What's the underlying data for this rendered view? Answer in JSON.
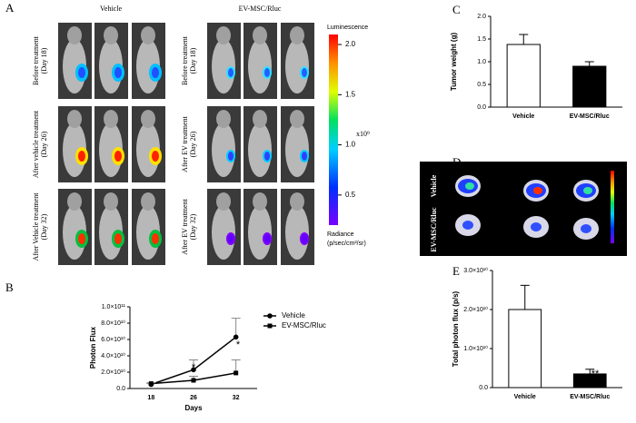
{
  "figure": {
    "panels": [
      "A",
      "B",
      "C",
      "D",
      "E"
    ],
    "group_labels": [
      "Vehicle",
      "EV-MSC/Rluc"
    ],
    "row_labels": [
      [
        "Before treatment",
        "(Day 18)"
      ],
      [
        "After vehicle treatment",
        "(Day 26)"
      ],
      [
        "After Vehicle treatment",
        "(Day 32)"
      ],
      [
        "Before treatment",
        "(Day 18)"
      ],
      [
        "After EV treatment",
        "(Day 26)"
      ],
      [
        "After EV treatment",
        "(Day 32)"
      ]
    ],
    "colorbar": {
      "title": "Luminescence",
      "unit": "x10⁹",
      "range": [
        0.2,
        2.1
      ],
      "ticks": [
        {
          "value": 2.0,
          "label": "2.0"
        },
        {
          "value": 1.5,
          "label": "1.5"
        },
        {
          "value": 1.0,
          "label": "1.0"
        },
        {
          "value": 0.5,
          "label": "0.5"
        }
      ],
      "footer": [
        "Radiance",
        "(p/sec/cm²/sr)"
      ]
    },
    "tumor_labels": [
      "Vehicle",
      "EV-MSC/Rluc"
    ]
  },
  "chart_data": [
    {
      "type": "line",
      "categories": [
        "18",
        "26",
        "32"
      ],
      "xlabel": "Days",
      "ylabel": "Photon Flux",
      "ylim": [
        0,
        100000000000
      ],
      "yticks": [
        {
          "value": 0,
          "label": "0.0"
        },
        {
          "value": 20000000000,
          "label": "2.0×10¹⁰"
        },
        {
          "value": 40000000000,
          "label": "4.0×10¹⁰"
        },
        {
          "value": 60000000000,
          "label": "6.0×10¹⁰"
        },
        {
          "value": 80000000000,
          "label": "8.0×10¹⁰"
        },
        {
          "value": 100000000000,
          "label": "1.0×10¹¹"
        }
      ],
      "series": [
        {
          "name": "Vehicle",
          "color": "#000000",
          "marker": "circle",
          "values": [
            5000000000,
            23000000000,
            63000000000
          ],
          "errors": [
            1000000000,
            12000000000,
            23000000000
          ]
        },
        {
          "name": "EV-MSC/Rluc",
          "color": "#000000",
          "marker": "square",
          "values": [
            6000000000,
            10000000000,
            19000000000
          ],
          "errors": [
            1000000000,
            5000000000,
            16000000000
          ]
        }
      ],
      "annotations": [
        "*",
        "*"
      ]
    },
    {
      "type": "bar",
      "categories": [
        "Vehicle",
        "EV-MSC/Rluc"
      ],
      "ylabel": "Tumor weight  (g)",
      "values": [
        1.38,
        0.9
      ],
      "errors": [
        0.22,
        0.1
      ],
      "colors": [
        "#ffffff",
        "#000000"
      ],
      "ylim": [
        0,
        2.0
      ],
      "yticks": [
        {
          "value": 0,
          "label": "0.0"
        },
        {
          "value": 0.5,
          "label": "0.5"
        },
        {
          "value": 1.0,
          "label": "1.0"
        },
        {
          "value": 1.5,
          "label": "1.5"
        },
        {
          "value": 2.0,
          "label": "2.0"
        }
      ],
      "annotations": [
        "*"
      ]
    },
    {
      "type": "bar",
      "categories": [
        "Vehicle",
        "EV-MSC/Rluc"
      ],
      "ylabel": "Total photon flux (p/s)",
      "values": [
        20000000000,
        3500000000
      ],
      "errors": [
        6200000000,
        1200000000
      ],
      "colors": [
        "#ffffff",
        "#000000"
      ],
      "ylim": [
        0,
        30000000000
      ],
      "yticks": [
        {
          "value": 0,
          "label": "0.0"
        },
        {
          "value": 10000000000,
          "label": "1.0×10¹⁰"
        },
        {
          "value": 20000000000,
          "label": "2.0×10¹⁰"
        },
        {
          "value": 30000000000,
          "label": "3.0×10¹⁰"
        }
      ],
      "annotations": [
        "**"
      ]
    }
  ]
}
